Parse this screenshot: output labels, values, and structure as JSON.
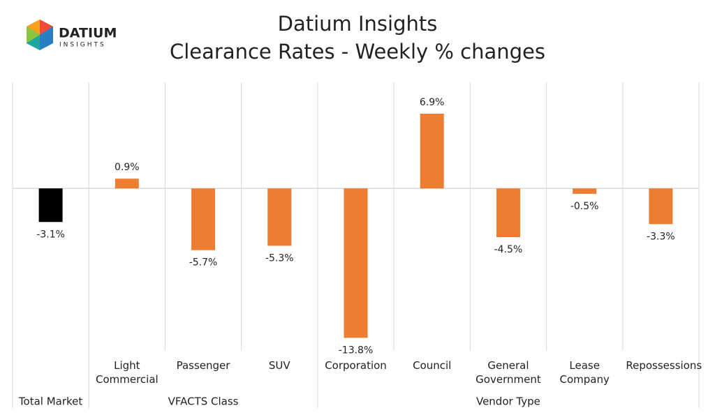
{
  "logo": {
    "name": "DATIUM",
    "tagline": "INSIGHTS"
  },
  "chart_data": {
    "type": "bar",
    "title": "Datium Insights",
    "subtitle": "Clearance Rates - Weekly % changes",
    "categories": [
      "",
      "Light Commercial",
      "Passenger",
      "SUV",
      "Corporation",
      "Council",
      "General Government",
      "Lease Company",
      "Repossessions"
    ],
    "groups": [
      {
        "label": "Total Market",
        "span": 1
      },
      {
        "label": "VFACTS Class",
        "span": 3
      },
      {
        "label": "Vendor Type",
        "span": 5
      }
    ],
    "values": [
      -3.1,
      0.9,
      -5.7,
      -5.3,
      -13.8,
      6.9,
      -4.5,
      -0.5,
      -3.3
    ],
    "value_labels": [
      "-3.1%",
      "0.9%",
      "-5.7%",
      "-5.3%",
      "-13.8%",
      "6.9%",
      "-4.5%",
      "-0.5%",
      "-3.3%"
    ],
    "colors": [
      "#000000",
      "#ed7d31",
      "#ed7d31",
      "#ed7d31",
      "#ed7d31",
      "#ed7d31",
      "#ed7d31",
      "#ed7d31",
      "#ed7d31"
    ],
    "ylim": [
      -15,
      9.8
    ]
  }
}
